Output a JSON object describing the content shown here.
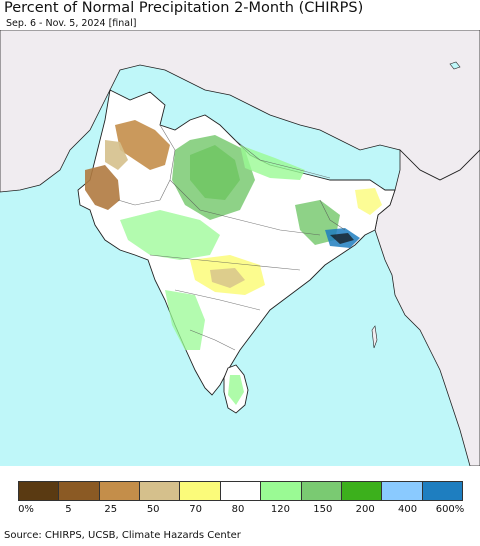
{
  "title": "Percent of Normal Precipitation 2-Month (CHIRPS)",
  "subtitle": "Sep. 6 - Nov. 5, 2024 [final]",
  "colors": {
    "ocean": "#bff7f9",
    "land_outside": "#f0ecf0",
    "border": "#222222"
  },
  "legend": {
    "colors": [
      "#5a3a12",
      "#8b5a24",
      "#c48e4a",
      "#d5c08c",
      "#fbfb7a",
      "#ffffff",
      "#9afa94",
      "#7aca72",
      "#3cb01c",
      "#8acaff",
      "#1e7ec0"
    ],
    "labels": [
      "0%",
      "5",
      "25",
      "50",
      "70",
      "80",
      "120",
      "150",
      "200",
      "400",
      "600%"
    ]
  },
  "source": "Source: CHIRPS, UCSB, Climate Hazards Center"
}
